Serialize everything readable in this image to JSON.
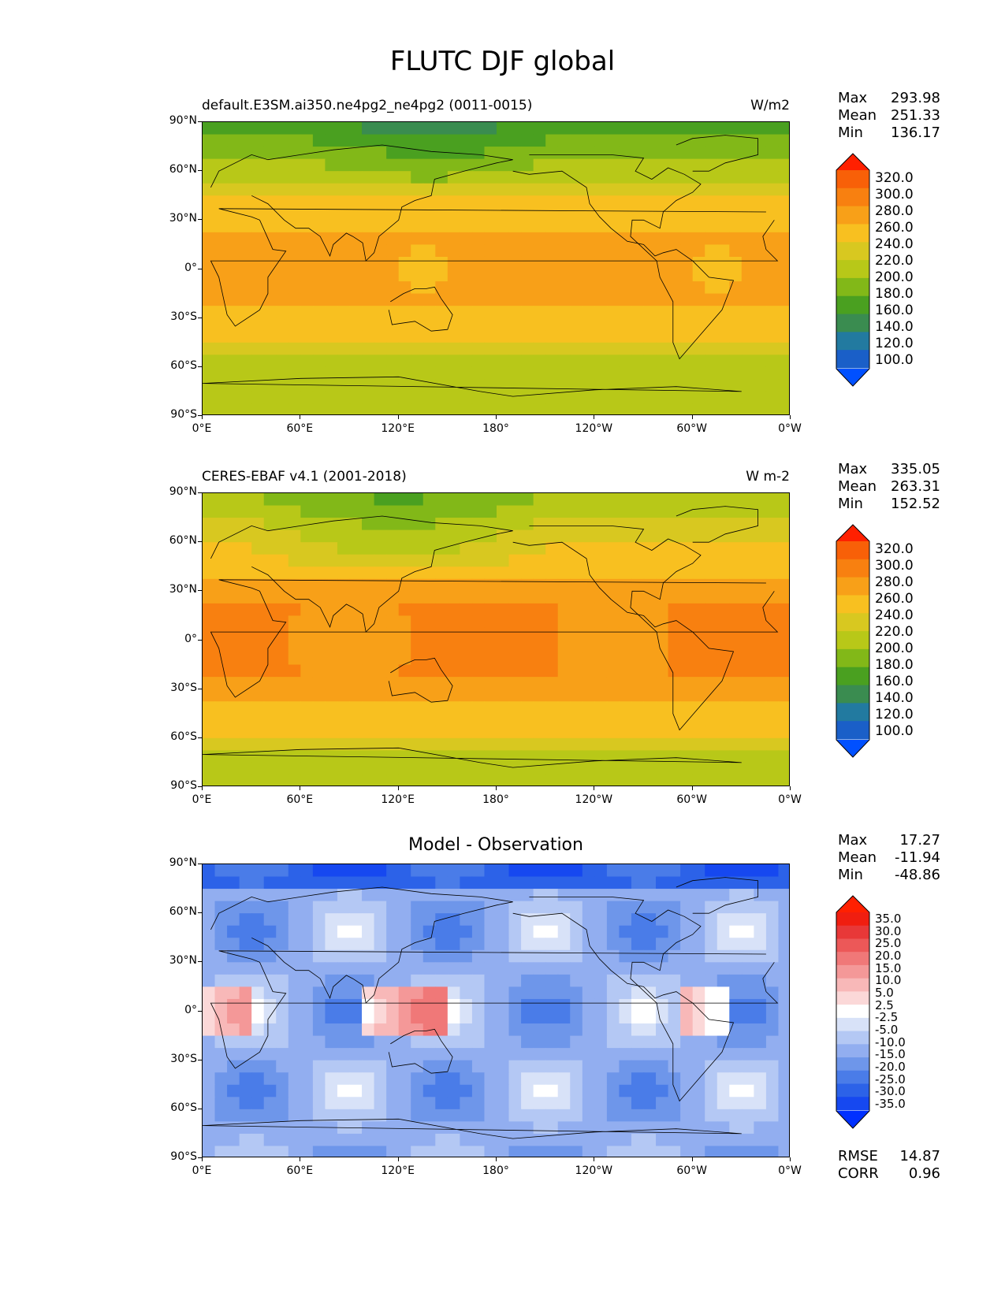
{
  "figure_title": "FLUTC DJF global",
  "panels": [
    {
      "left_title": "default.E3SM.ai350.ne4pg2_ne4pg2 (0011-0015)",
      "right_title": "W/m2",
      "center_title": "",
      "stats": [
        {
          "label": "Max",
          "value": "293.98"
        },
        {
          "label": "Mean",
          "value": "251.33"
        },
        {
          "label": "Min",
          "value": "136.17"
        }
      ],
      "colorbar_labels": [
        "320.0",
        "300.0",
        "280.0",
        "260.0",
        "240.0",
        "220.0",
        "200.0",
        "180.0",
        "160.0",
        "140.0",
        "120.0",
        "100.0"
      ],
      "extra_stats": []
    },
    {
      "left_title": "CERES-EBAF v4.1 (2001-2018)",
      "right_title": "W m-2",
      "center_title": "",
      "stats": [
        {
          "label": "Max",
          "value": "335.05"
        },
        {
          "label": "Mean",
          "value": "263.31"
        },
        {
          "label": "Min",
          "value": "152.52"
        }
      ],
      "colorbar_labels": [
        "320.0",
        "300.0",
        "280.0",
        "260.0",
        "240.0",
        "220.0",
        "200.0",
        "180.0",
        "160.0",
        "140.0",
        "120.0",
        "100.0"
      ],
      "extra_stats": []
    },
    {
      "left_title": "",
      "right_title": "",
      "center_title": "Model - Observation",
      "stats": [
        {
          "label": "Max",
          "value": "17.27"
        },
        {
          "label": "Mean",
          "value": "-11.94"
        },
        {
          "label": "Min",
          "value": "-48.86"
        }
      ],
      "colorbar_labels": [
        "35.0",
        "30.0",
        "25.0",
        "20.0",
        "15.0",
        "10.0",
        "5.0",
        "2.5",
        "-2.5",
        "-5.0",
        "-10.0",
        "-15.0",
        "-20.0",
        "-25.0",
        "-30.0",
        "-35.0"
      ],
      "extra_stats": [
        {
          "label": "RMSE",
          "value": "14.87"
        },
        {
          "label": "CORR",
          "value": "0.96"
        }
      ]
    }
  ],
  "axes": {
    "y_ticks": [
      "90°N",
      "60°N",
      "30°N",
      "0°",
      "30°S",
      "60°S",
      "90°S"
    ],
    "x_ticks": [
      "0°E",
      "60°E",
      "120°E",
      "180°",
      "120°W",
      "60°W",
      "0°W"
    ]
  },
  "chart_data": [
    {
      "type": "heatmap",
      "title": "default.E3SM.ai350.ne4pg2_ne4pg2 (0011-0015)",
      "units": "W/m2",
      "x_ticks": [
        "0°E",
        "60°E",
        "120°E",
        "180°",
        "120°W",
        "60°W",
        "0°W"
      ],
      "y_ticks": [
        "90°N",
        "60°N",
        "30°N",
        "0°",
        "30°S",
        "60°S",
        "90°S"
      ],
      "xlim": [
        0,
        360
      ],
      "ylim": [
        -90,
        90
      ],
      "levels": [
        100,
        120,
        140,
        160,
        180,
        200,
        220,
        240,
        260,
        280,
        300,
        320
      ],
      "colors": [
        "#0050ff",
        "#1a5fc8",
        "#227aa0",
        "#3a8c50",
        "#4aa020",
        "#82b818",
        "#b8c818",
        "#d8c820",
        "#f8c020",
        "#f8a018",
        "#f88010",
        "#f86008",
        "#ff2000"
      ],
      "stats": {
        "max": 293.98,
        "mean": 251.33,
        "min": 136.17
      }
    },
    {
      "type": "heatmap",
      "title": "CERES-EBAF v4.1 (2001-2018)",
      "units": "W m-2",
      "x_ticks": [
        "0°E",
        "60°E",
        "120°E",
        "180°",
        "120°W",
        "60°W",
        "0°W"
      ],
      "y_ticks": [
        "90°N",
        "60°N",
        "30°N",
        "0°",
        "30°S",
        "60°S",
        "90°S"
      ],
      "xlim": [
        0,
        360
      ],
      "ylim": [
        -90,
        90
      ],
      "levels": [
        100,
        120,
        140,
        160,
        180,
        200,
        220,
        240,
        260,
        280,
        300,
        320
      ],
      "colors": [
        "#0050ff",
        "#1a5fc8",
        "#227aa0",
        "#3a8c50",
        "#4aa020",
        "#82b818",
        "#b8c818",
        "#d8c820",
        "#f8c020",
        "#f8a018",
        "#f88010",
        "#f86008",
        "#ff2000"
      ],
      "stats": {
        "max": 335.05,
        "mean": 263.31,
        "min": 152.52
      }
    },
    {
      "type": "heatmap",
      "title": "Model - Observation",
      "x_ticks": [
        "0°E",
        "60°E",
        "120°E",
        "180°",
        "120°W",
        "60°W",
        "0°W"
      ],
      "y_ticks": [
        "90°N",
        "60°N",
        "30°N",
        "0°",
        "30°S",
        "60°S",
        "90°S"
      ],
      "xlim": [
        0,
        360
      ],
      "ylim": [
        -90,
        90
      ],
      "levels": [
        -35,
        -30,
        -25,
        -20,
        -15,
        -10,
        -5,
        -2.5,
        2.5,
        5,
        10,
        15,
        20,
        25,
        30,
        35
      ],
      "colors": [
        "#0030ff",
        "#1648f0",
        "#2c62e8",
        "#4a7ce8",
        "#6e96ea",
        "#92aef0",
        "#b4c8f4",
        "#d8e2f8",
        "#ffffff",
        "#fbd8d8",
        "#f8b8b8",
        "#f49898",
        "#f07878",
        "#ec5858",
        "#e83838",
        "#f01e10",
        "#ff2000"
      ],
      "stats": {
        "max": 17.27,
        "mean": -11.94,
        "min": -48.86,
        "rmse": 14.87,
        "corr": 0.96
      }
    }
  ]
}
